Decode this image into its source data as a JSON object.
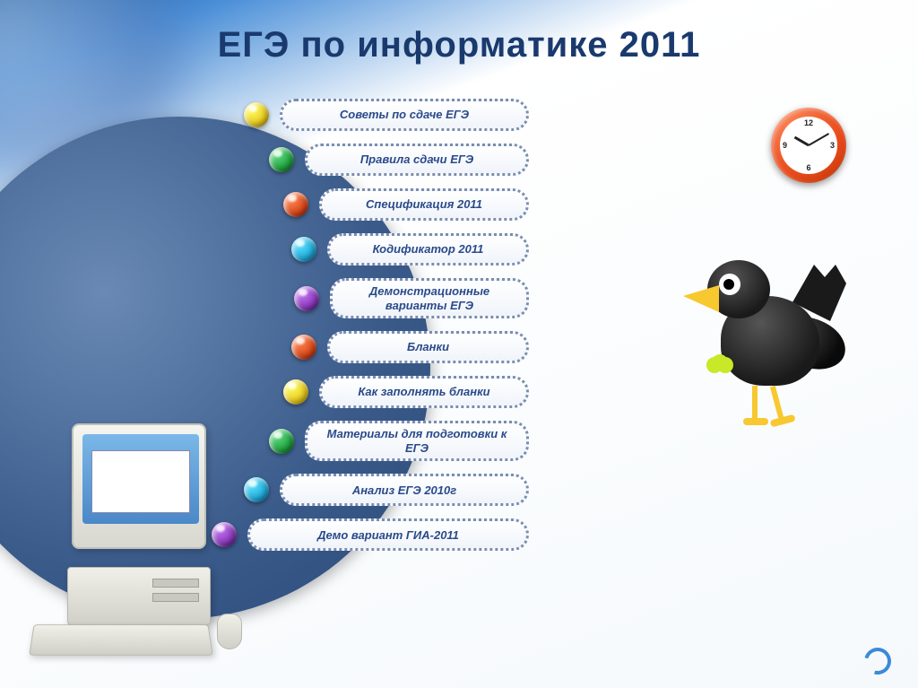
{
  "title": "ЕГЭ по информатике 2011",
  "title_color": "#1a3a6e",
  "title_fontsize": 40,
  "background_gradient": [
    "#1a5fa8",
    "#4a8fd8",
    "#ffffff",
    "#f5f9fc"
  ],
  "arc_color": "#3a5a8a",
  "pill_border_color": "#7a8db0",
  "pill_text_color": "#2a4a8a",
  "menu": {
    "items": [
      {
        "label": "Советы по сдаче ЕГЭ",
        "bullet_color": "#e8c820"
      },
      {
        "label": "Правила сдачи ЕГЭ",
        "bullet_color": "#20a040"
      },
      {
        "label": "Спецификация 2011",
        "bullet_color": "#d84818"
      },
      {
        "label": "Кодификатор 2011",
        "bullet_color": "#20a8d8"
      },
      {
        "label": "Демонстрационные варианты ЕГЭ",
        "bullet_color": "#8838b8"
      },
      {
        "label": "Бланки",
        "bullet_color": "#d84818"
      },
      {
        "label": "Как заполнять бланки",
        "bullet_color": "#e8c820"
      },
      {
        "label": "Материалы для подготовки к ЕГЭ",
        "bullet_color": "#20a040"
      },
      {
        "label": "Анализ ЕГЭ 2010г",
        "bullet_color": "#20a8d8"
      },
      {
        "label": "Демо вариант ГИА-2011",
        "bullet_color": "#8838b8"
      }
    ]
  },
  "clock": {
    "rim_color": "#e84a1a",
    "face_color": "#ffffff",
    "time_shown": "10:10",
    "numerals": {
      "n12": "12",
      "n3": "3",
      "n6": "6",
      "n9": "9"
    }
  },
  "decorations": {
    "globe_colors": [
      "#e8f4ff",
      "#7ab8f0",
      "#2a6ab0",
      "#0a3a70"
    ],
    "computer_colors": {
      "case": "#e8e8e0",
      "screen": "#5a98d8"
    },
    "crow_colors": {
      "body": "#1a1a1a",
      "beak": "#f8c830",
      "eye": "#ffffff",
      "glove": "#c8e828"
    }
  }
}
